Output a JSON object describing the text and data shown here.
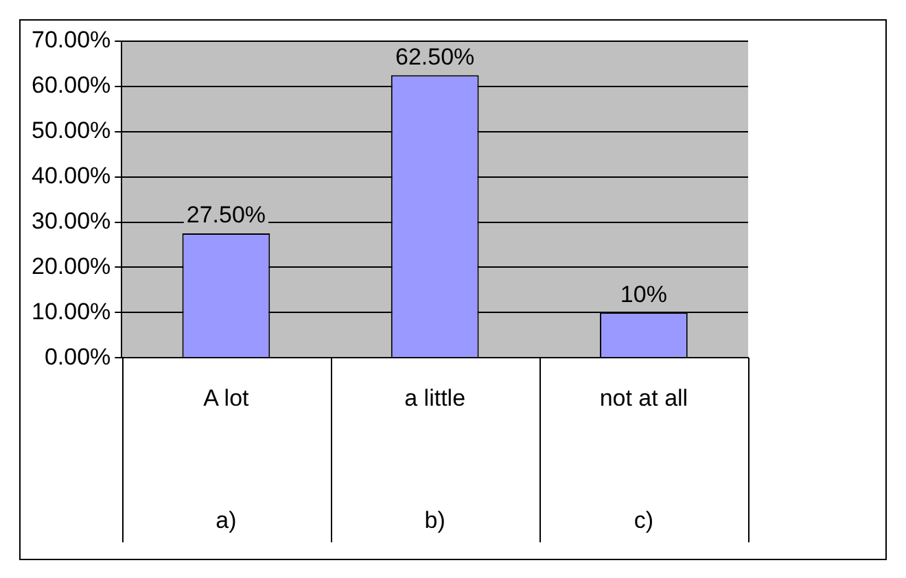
{
  "chart_data": {
    "type": "bar",
    "categories": [
      "A lot",
      "a little",
      "not at all"
    ],
    "values": [
      27.5,
      62.5,
      10
    ],
    "value_labels": [
      "27.50%",
      "62.50%",
      "10%"
    ],
    "color": "#9999ff",
    "ylim": [
      0,
      70
    ],
    "yticks": [
      {
        "value": 0,
        "label": "0.00%"
      },
      {
        "value": 10,
        "label": "10.00%"
      },
      {
        "value": 20,
        "label": "20.00%"
      },
      {
        "value": 30,
        "label": "30.00%"
      },
      {
        "value": 40,
        "label": "40.00%"
      },
      {
        "value": 50,
        "label": "50.00%"
      },
      {
        "value": 60,
        "label": "60.00%"
      },
      {
        "value": 70,
        "label": "70.00%"
      }
    ],
    "annotations": [
      "a)",
      "b)",
      "c)"
    ],
    "grid": "y",
    "legend": false
  }
}
